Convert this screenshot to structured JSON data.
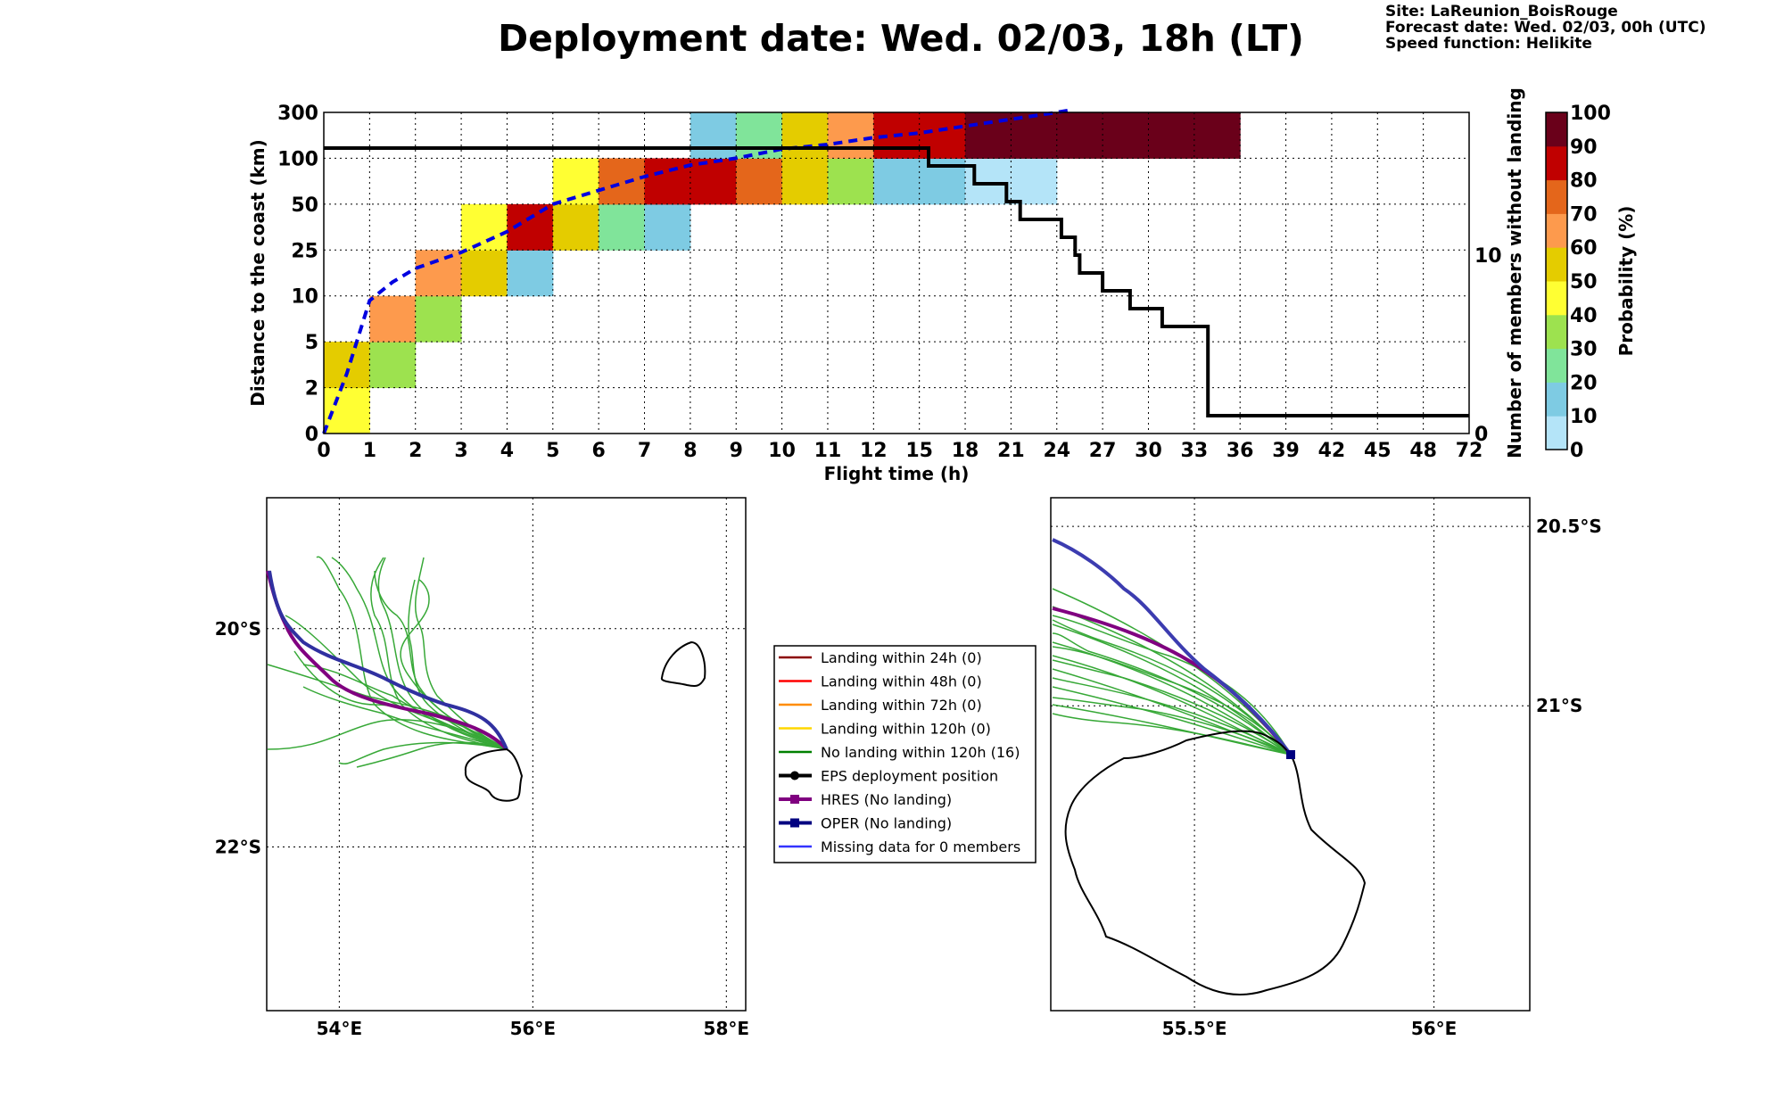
{
  "title": "Deployment date: Wed. 02/03, 18h (LT)",
  "info": {
    "site": "Site: LaReunion_BoisRouge",
    "forecast": "Forecast date: Wed. 02/03, 00h (UTC)",
    "speed": "Speed function: Helikite"
  },
  "chart_data": [
    {
      "type": "heatmap",
      "xlabel": "Flight time (h)",
      "ylabel": "Distance to the coast (km)",
      "y2label": "Number of members without landing",
      "x_ticks": [
        "0",
        "1",
        "2",
        "3",
        "4",
        "5",
        "6",
        "7",
        "8",
        "9",
        "10",
        "11",
        "12",
        "15",
        "18",
        "21",
        "24",
        "27",
        "30",
        "33",
        "36",
        "39",
        "42",
        "45",
        "48",
        "72"
      ],
      "y_ticks": [
        "0",
        "2",
        "5",
        "10",
        "25",
        "50",
        "100",
        "300"
      ],
      "y2_ticks": [
        "0",
        "10"
      ],
      "y2_range": [
        0,
        18
      ],
      "colorbar": {
        "label": "Probability (%)",
        "ticks": [
          "0",
          "10",
          "20",
          "30",
          "40",
          "50",
          "60",
          "70",
          "80",
          "90",
          "100"
        ],
        "colors": [
          "#b4e4f8",
          "#7ecbe3",
          "#80e49a",
          "#9de24f",
          "#ffff33",
          "#e4cc00",
          "#fd9a4d",
          "#e4661b",
          "#c00000",
          "#6a001a"
        ]
      },
      "cells": [
        {
          "x": 0,
          "y": 0,
          "p": 45
        },
        {
          "x": 0,
          "y": 1,
          "p": 55
        },
        {
          "x": 1,
          "y": 1,
          "p": 35
        },
        {
          "x": 1,
          "y": 2,
          "p": 65
        },
        {
          "x": 2,
          "y": 2,
          "p": 35
        },
        {
          "x": 2,
          "y": 3,
          "p": 65
        },
        {
          "x": 3,
          "y": 3,
          "p": 55
        },
        {
          "x": 3,
          "y": 4,
          "p": 45
        },
        {
          "x": 4,
          "y": 3,
          "p": 15
        },
        {
          "x": 4,
          "y": 4,
          "p": 85
        },
        {
          "x": 5,
          "y": 4,
          "p": 55
        },
        {
          "x": 5,
          "y": 5,
          "p": 45
        },
        {
          "x": 6,
          "y": 4,
          "p": 25
        },
        {
          "x": 6,
          "y": 5,
          "p": 75
        },
        {
          "x": 7,
          "y": 4,
          "p": 15
        },
        {
          "x": 7,
          "y": 5,
          "p": 85
        },
        {
          "x": 8,
          "y": 5,
          "p": 85
        },
        {
          "x": 8,
          "y": 6,
          "p": 15
        },
        {
          "x": 9,
          "y": 5,
          "p": 75
        },
        {
          "x": 9,
          "y": 6,
          "p": 25
        },
        {
          "x": 10,
          "y": 5,
          "p": 55
        },
        {
          "x": 10,
          "y": 6,
          "p": 55
        },
        {
          "x": 11,
          "y": 5,
          "p": 35
        },
        {
          "x": 11,
          "y": 6,
          "p": 65
        },
        {
          "x": 12,
          "y": 5,
          "p": 15
        },
        {
          "x": 12,
          "y": 6,
          "p": 85
        },
        {
          "x": 13,
          "y": 5,
          "p": 15
        },
        {
          "x": 13,
          "y": 6,
          "p": 85
        },
        {
          "x": 14,
          "y": 5,
          "p": 5
        },
        {
          "x": 14,
          "y": 6,
          "p": 95
        },
        {
          "x": 15,
          "y": 5,
          "p": 5
        },
        {
          "x": 15,
          "y": 6,
          "p": 95
        },
        {
          "x": 16,
          "y": 6,
          "p": 95
        },
        {
          "x": 17,
          "y": 6,
          "p": 95
        },
        {
          "x": 18,
          "y": 6,
          "p": 95
        },
        {
          "x": 19,
          "y": 6,
          "p": 95
        }
      ],
      "median_curve": [
        [
          0,
          0
        ],
        [
          0.5,
          1.3
        ],
        [
          1,
          2.9
        ],
        [
          1.5,
          3.3
        ],
        [
          2,
          3.6
        ],
        [
          3,
          3.95
        ],
        [
          4,
          4.4
        ],
        [
          5,
          5.0
        ],
        [
          6,
          5.3
        ],
        [
          7,
          5.6
        ],
        [
          8,
          5.85
        ],
        [
          9,
          6.0
        ],
        [
          10,
          6.2
        ],
        [
          11,
          6.3
        ],
        [
          12,
          6.45
        ],
        [
          13,
          6.55
        ],
        [
          14,
          6.7
        ],
        [
          15,
          6.85
        ],
        [
          16,
          7.0
        ],
        [
          16.3,
          7.05
        ]
      ],
      "members_step": [
        [
          0,
          16
        ],
        [
          13.2,
          16
        ],
        [
          13.2,
          15
        ],
        [
          14.2,
          15
        ],
        [
          14.2,
          14
        ],
        [
          14.9,
          14
        ],
        [
          14.9,
          13
        ],
        [
          15.2,
          13
        ],
        [
          15.2,
          12
        ],
        [
          16.1,
          12
        ],
        [
          16.1,
          11
        ],
        [
          16.4,
          11
        ],
        [
          16.4,
          10
        ],
        [
          16.5,
          10
        ],
        [
          16.5,
          9
        ],
        [
          17.0,
          9
        ],
        [
          17.0,
          8
        ],
        [
          17.6,
          8
        ],
        [
          17.6,
          7
        ],
        [
          18.3,
          7
        ],
        [
          18.3,
          6
        ],
        [
          19.3,
          6
        ],
        [
          19.3,
          1
        ],
        [
          25,
          1
        ]
      ]
    },
    {
      "type": "map",
      "lon_ticks": [
        "54°E",
        "56°E",
        "58°E"
      ],
      "lat_ticks": [
        "20°S",
        "22°S"
      ],
      "lon_range": [
        53.25,
        58.2
      ],
      "lat_range": [
        18.8,
        23.5
      ]
    },
    {
      "type": "map",
      "lon_ticks": [
        "55.5°E",
        "56°E"
      ],
      "lat_ticks": [
        "20.5°S",
        "21°S"
      ],
      "lon_range": [
        55.2,
        56.2
      ],
      "lat_range": [
        20.42,
        21.85
      ]
    }
  ],
  "legend": {
    "items": [
      {
        "label": "Landing within 24h (0)",
        "color": "#8b0000",
        "marker": "none"
      },
      {
        "label": "Landing within 48h (0)",
        "color": "#ff0000",
        "marker": "none"
      },
      {
        "label": "Landing within 72h (0)",
        "color": "#ff8c00",
        "marker": "none"
      },
      {
        "label": "Landing within 120h (0)",
        "color": "#ffd700",
        "marker": "none"
      },
      {
        "label": "No landing within 120h (16)",
        "color": "#008000",
        "marker": "none"
      },
      {
        "label": "EPS deployment position",
        "color": "#000000",
        "marker": "circle"
      },
      {
        "label": "HRES (No landing)",
        "color": "#800080",
        "marker": "square"
      },
      {
        "label": "OPER (No landing)",
        "color": "#000080",
        "marker": "square"
      },
      {
        "label": "Missing data for 0 members",
        "color": "#3333ff",
        "marker": "none"
      }
    ]
  }
}
